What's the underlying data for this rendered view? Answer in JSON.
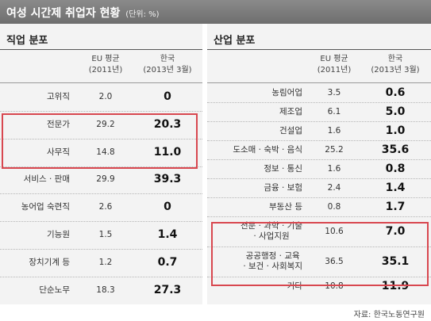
{
  "banner": {
    "title": "여성 시간제 취업자 현황",
    "unit": "(단위: %)"
  },
  "left": {
    "title": "직업 분포",
    "headers": {
      "eu": [
        "EU 평균",
        "(2011년)"
      ],
      "kr": [
        "한국",
        "(2013년 3월)"
      ]
    },
    "rows": [
      {
        "name": "고위직",
        "eu": "2.0",
        "kr": "0"
      },
      {
        "name": "전문가",
        "eu": "29.2",
        "kr": "20.3"
      },
      {
        "name": "사무직",
        "eu": "14.8",
        "kr": "11.0"
      },
      {
        "name": "서비스 · 판매",
        "eu": "29.9",
        "kr": "39.3"
      },
      {
        "name": "농어업 숙련직",
        "eu": "2.6",
        "kr": "0"
      },
      {
        "name": "기능원",
        "eu": "1.5",
        "kr": "1.4"
      },
      {
        "name": "장치기계 등",
        "eu": "1.2",
        "kr": "0.7"
      },
      {
        "name": "단순노무",
        "eu": "18.3",
        "kr": "27.3"
      }
    ]
  },
  "right": {
    "title": "산업 분포",
    "headers": {
      "eu": [
        "EU 평균",
        "(2011년)"
      ],
      "kr": [
        "한국",
        "(2013년 3월)"
      ]
    },
    "rows": [
      {
        "name": "농림어업",
        "eu": "3.5",
        "kr": "0.6"
      },
      {
        "name": "제조업",
        "eu": "6.1",
        "kr": "5.0"
      },
      {
        "name": "건설업",
        "eu": "1.6",
        "kr": "1.0"
      },
      {
        "name": "도소매 · 숙박 · 음식",
        "eu": "25.2",
        "kr": "35.6"
      },
      {
        "name": "정보 · 통신",
        "eu": "1.6",
        "kr": "0.8"
      },
      {
        "name": "금융 · 보험",
        "eu": "2.4",
        "kr": "1.4"
      },
      {
        "name": "부동산 등",
        "eu": "0.8",
        "kr": "1.7"
      },
      {
        "name": [
          "전문 · 과학 · 기술",
          "· 사업지원"
        ],
        "eu": "10.6",
        "kr": "7.0"
      },
      {
        "name": [
          "공공행정 · 교육",
          "· 보건 · 사회복지"
        ],
        "eu": "36.5",
        "kr": "35.1"
      },
      {
        "name": "기타",
        "eu": "10.8",
        "kr": "11.9"
      }
    ]
  },
  "source": "자료: 한국노동연구원",
  "colors": {
    "highlight": "#d8474f",
    "banner": "#7a7a7a",
    "panel": "#f3f3f3"
  }
}
